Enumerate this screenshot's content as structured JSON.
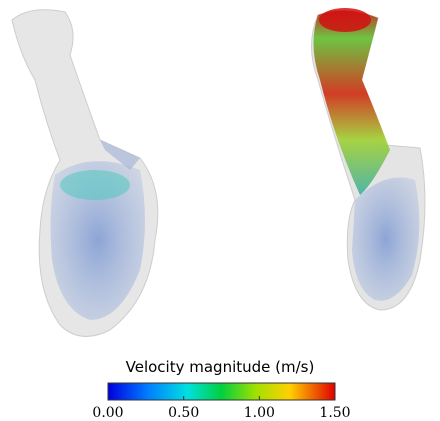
{
  "colorbar": {
    "title": "Velocity magnitude (m/s)",
    "range": [
      0,
      1.5
    ],
    "ticks": [
      {
        "value": 0,
        "label": "0.00"
      },
      {
        "value": 0.5,
        "label": "0.50"
      },
      {
        "value": 1,
        "label": "1.00"
      },
      {
        "value": 1.5,
        "label": "1.50"
      }
    ]
  }
}
